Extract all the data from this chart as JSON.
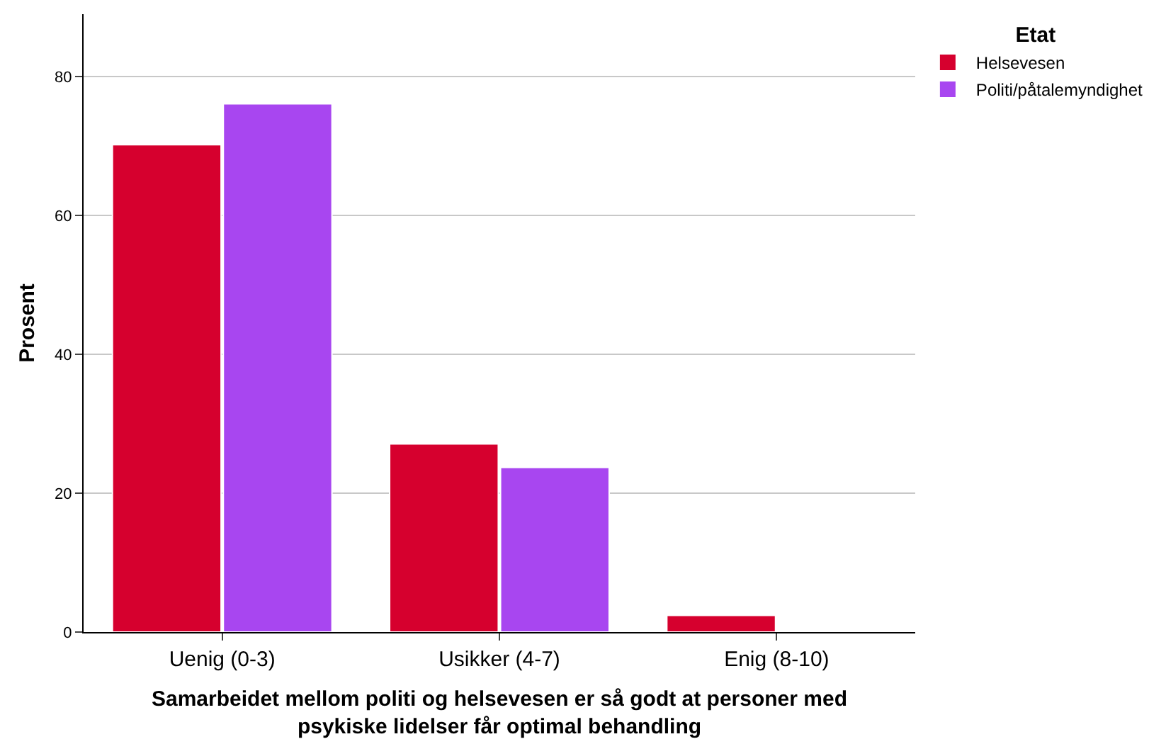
{
  "chart_data": {
    "type": "bar",
    "xlabel": "Samarbeidet mellom politi og helsevesen er så godt at personer med\npsykiske lidelser får optimal behandling",
    "ylabel": "Prosent",
    "legend_title": "Etat",
    "categories": [
      "Uenig (0-3)",
      "Usikker (4-7)",
      "Enig (8-10)"
    ],
    "series": [
      {
        "name": "Helsevesen",
        "color": "#d6002e",
        "values": [
          70.2,
          27.1,
          2.4
        ]
      },
      {
        "name": "Politi/påtalemyndighet",
        "color": "#a846f0",
        "values": [
          76.1,
          23.7,
          null
        ]
      }
    ],
    "ylim": [
      0,
      89
    ],
    "yticks": [
      0,
      20,
      40,
      60,
      80
    ],
    "grid": "y",
    "legend": "top right"
  }
}
